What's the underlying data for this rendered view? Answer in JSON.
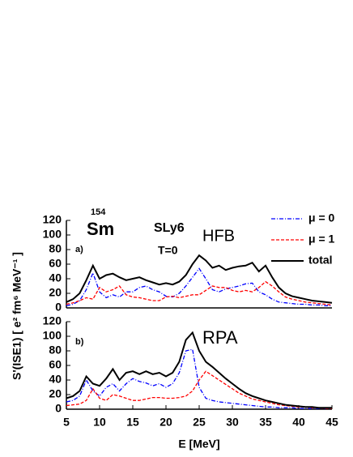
{
  "chart_data": [
    {
      "type": "line",
      "panel_label": "a)",
      "nucleus_mass": "154",
      "nucleus": "Sm",
      "force": "SLy6",
      "temperature": "T=0",
      "method": "HFB",
      "y_label": "S'(ISE1)  [ e² fm⁶ MeV⁻¹ ]",
      "legend": "upper right",
      "x": [
        5,
        6,
        7,
        8,
        9,
        10,
        11,
        12,
        13,
        14,
        15,
        16,
        17,
        18,
        19,
        20,
        21,
        22,
        23,
        24,
        25,
        26,
        27,
        28,
        29,
        30,
        31,
        32,
        33,
        34,
        35,
        36,
        37,
        38,
        39,
        40,
        41,
        42,
        43,
        44,
        45
      ],
      "series": [
        {
          "name": "μ = 0",
          "color": "#0000ff",
          "dash": "dashdot",
          "values": [
            3,
            5,
            10,
            25,
            48,
            22,
            14,
            18,
            15,
            22,
            22,
            28,
            30,
            25,
            22,
            16,
            15,
            20,
            30,
            42,
            54,
            40,
            25,
            22,
            26,
            28,
            30,
            33,
            34,
            22,
            18,
            12,
            8,
            7,
            6,
            5,
            5,
            4,
            4,
            3,
            3
          ]
        },
        {
          "name": "μ = 1",
          "color": "#ff0000",
          "dash": "dashed",
          "values": [
            5,
            7,
            10,
            14,
            12,
            28,
            22,
            25,
            30,
            18,
            15,
            14,
            12,
            10,
            10,
            15,
            16,
            14,
            16,
            18,
            18,
            24,
            30,
            28,
            28,
            24,
            22,
            24,
            22,
            28,
            36,
            30,
            22,
            15,
            12,
            10,
            8,
            7,
            6,
            5,
            4
          ]
        },
        {
          "name": "total",
          "color": "#000000",
          "dash": "solid",
          "values": [
            8,
            12,
            20,
            38,
            58,
            40,
            45,
            47,
            42,
            38,
            40,
            42,
            38,
            35,
            32,
            34,
            32,
            36,
            45,
            60,
            72,
            65,
            55,
            58,
            52,
            55,
            57,
            58,
            62,
            50,
            58,
            42,
            28,
            20,
            16,
            14,
            12,
            10,
            9,
            8,
            7
          ]
        }
      ],
      "xlim": [
        5,
        45
      ],
      "ylim": [
        0,
        120
      ],
      "yticks": [
        0,
        20,
        40,
        60,
        80,
        100,
        120
      ]
    },
    {
      "type": "line",
      "panel_label": "b)",
      "method": "RPA",
      "x_label": "E [MeV]",
      "x": [
        5,
        6,
        7,
        8,
        9,
        10,
        11,
        12,
        13,
        14,
        15,
        16,
        17,
        18,
        19,
        20,
        21,
        22,
        23,
        24,
        25,
        26,
        27,
        28,
        29,
        30,
        31,
        32,
        33,
        34,
        35,
        36,
        37,
        38,
        39,
        40,
        41,
        42,
        43,
        44,
        45
      ],
      "series": [
        {
          "color": "#0000ff",
          "dash": "dashdot",
          "values": [
            10,
            12,
            18,
            40,
            25,
            18,
            30,
            35,
            25,
            35,
            42,
            38,
            36,
            32,
            35,
            30,
            35,
            50,
            80,
            82,
            30,
            15,
            12,
            10,
            9,
            8,
            7,
            6,
            5,
            4,
            3,
            3,
            2,
            2,
            2,
            1,
            1,
            1,
            1,
            1,
            1
          ]
        },
        {
          "color": "#ff0000",
          "dash": "dashed",
          "values": [
            5,
            6,
            7,
            12,
            28,
            15,
            12,
            20,
            18,
            15,
            12,
            12,
            14,
            16,
            16,
            15,
            15,
            16,
            18,
            25,
            40,
            52,
            46,
            40,
            34,
            28,
            22,
            18,
            14,
            12,
            10,
            8,
            6,
            5,
            4,
            3,
            3,
            2,
            2,
            1,
            1
          ]
        },
        {
          "color": "#000000",
          "dash": "solid",
          "values": [
            15,
            18,
            25,
            45,
            35,
            32,
            42,
            55,
            40,
            50,
            52,
            48,
            52,
            48,
            50,
            45,
            50,
            65,
            95,
            105,
            80,
            65,
            58,
            50,
            42,
            35,
            28,
            22,
            18,
            15,
            12,
            10,
            8,
            6,
            5,
            4,
            3,
            3,
            2,
            2,
            2
          ]
        }
      ],
      "xlim": [
        5,
        45
      ],
      "ylim": [
        0,
        120
      ],
      "yticks": [
        0,
        20,
        40,
        60,
        80,
        100,
        120
      ],
      "xticks": [
        5,
        10,
        15,
        20,
        25,
        30,
        35,
        40,
        45
      ]
    }
  ]
}
